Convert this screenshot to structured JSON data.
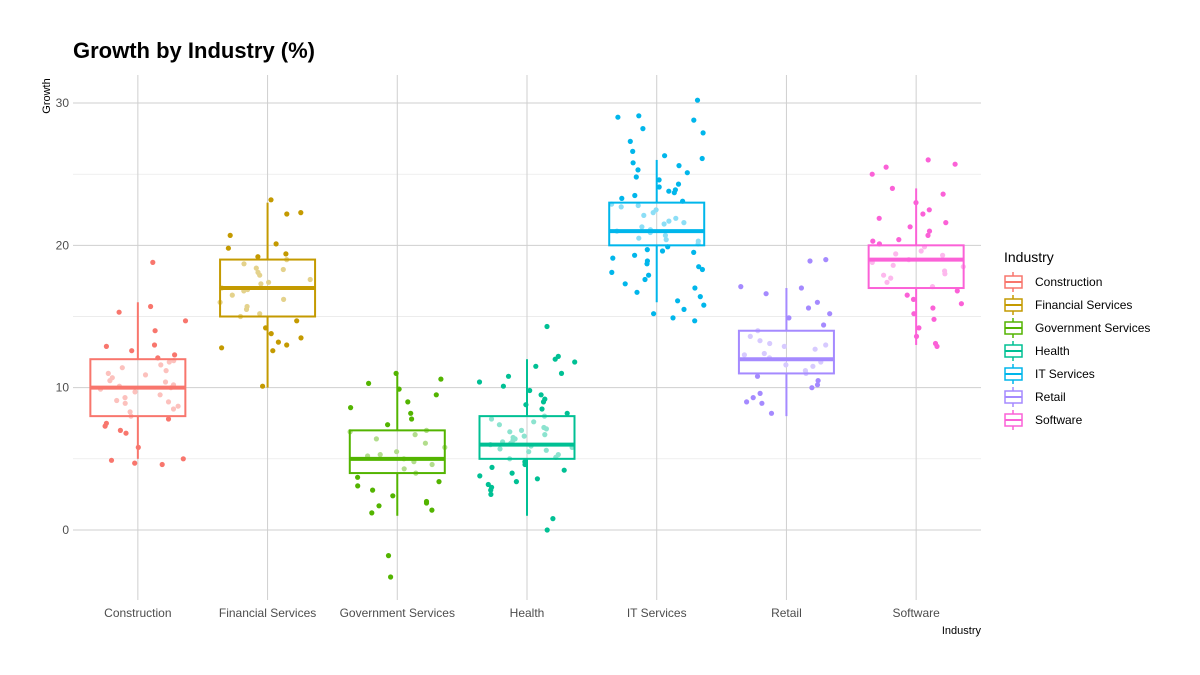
{
  "chart_data": {
    "type": "boxplot",
    "title": "Growth by Industry (%)",
    "xlabel": "Industry",
    "ylabel": "Growth",
    "ylim": [
      -5,
      31
    ],
    "y_ticks": [
      0,
      10,
      20,
      30
    ],
    "grid": true,
    "legend": {
      "title": "Industry",
      "position": "right"
    },
    "categories": [
      "Construction",
      "Financial Services",
      "Government Services",
      "Health",
      "IT Services",
      "Retail",
      "Software"
    ],
    "colors": [
      "#F8766D",
      "#C49A00",
      "#53B400",
      "#00C094",
      "#00B6EB",
      "#A58AFF",
      "#FB61D7"
    ],
    "boxes": [
      {
        "name": "Construction",
        "whisker_low": 5,
        "q1": 8,
        "median": 10,
        "q3": 12,
        "whisker_high": 16
      },
      {
        "name": "Financial Services",
        "whisker_low": 10,
        "q1": 15,
        "median": 17,
        "q3": 19,
        "whisker_high": 23
      },
      {
        "name": "Government Services",
        "whisker_low": 1,
        "q1": 4,
        "median": 5,
        "q3": 7,
        "whisker_high": 11
      },
      {
        "name": "Health",
        "whisker_low": 1,
        "q1": 5,
        "median": 6,
        "q3": 8,
        "whisker_high": 12
      },
      {
        "name": "IT Services",
        "whisker_low": 16,
        "q1": 20,
        "median": 21,
        "q3": 23,
        "whisker_high": 26
      },
      {
        "name": "Retail",
        "whisker_low": 8,
        "q1": 11,
        "median": 12,
        "q3": 14,
        "whisker_high": 17
      },
      {
        "name": "Software",
        "whisker_low": 13,
        "q1": 17,
        "median": 19,
        "q3": 20,
        "whisker_high": 24
      }
    ],
    "points": [
      [
        18.8,
        15.3,
        15.7,
        14.7,
        14.0,
        13.0,
        12.9,
        12.3,
        12.1,
        11.8,
        11.6,
        11.4,
        11.2,
        11.0,
        10.9,
        10.7,
        10.5,
        10.4,
        10.2,
        10.0,
        9.9,
        9.7,
        9.5,
        9.3,
        9.1,
        8.9,
        8.7,
        8.5,
        8.3,
        8.0,
        7.8,
        7.5,
        7.3,
        7.0,
        6.8,
        5.8,
        5.0,
        4.7,
        4.6,
        4.9,
        12.6,
        11.9,
        9.0,
        10.1
      ],
      [
        23.2,
        22.3,
        22.2,
        20.7,
        20.1,
        19.8,
        19.4,
        19.2,
        19.0,
        18.7,
        18.4,
        18.1,
        17.9,
        17.6,
        17.3,
        17.0,
        16.8,
        16.5,
        16.2,
        16.0,
        15.7,
        15.5,
        15.2,
        15.0,
        14.7,
        14.2,
        13.8,
        13.5,
        13.2,
        13.0,
        12.8,
        12.6,
        10.1,
        17.4,
        18.3,
        16.9
      ],
      [
        11.0,
        10.6,
        10.3,
        9.9,
        9.5,
        9.0,
        8.6,
        8.2,
        7.8,
        7.4,
        7.0,
        6.7,
        6.4,
        6.1,
        5.8,
        5.5,
        5.2,
        5.0,
        4.8,
        4.6,
        4.3,
        4.0,
        3.7,
        3.4,
        3.1,
        2.8,
        2.4,
        2.0,
        1.7,
        1.4,
        1.2,
        1.9,
        -1.8,
        -3.3,
        6.9,
        5.3
      ],
      [
        14.3,
        12.2,
        12.0,
        11.8,
        11.5,
        11.0,
        10.8,
        10.4,
        10.1,
        9.8,
        9.5,
        9.2,
        9.0,
        8.8,
        8.5,
        8.2,
        8.0,
        7.8,
        7.6,
        7.4,
        7.2,
        7.0,
        6.9,
        6.7,
        6.5,
        6.4,
        6.2,
        6.1,
        6.0,
        5.9,
        5.8,
        5.6,
        5.5,
        5.3,
        5.1,
        5.0,
        4.8,
        4.6,
        4.4,
        4.2,
        4.0,
        3.8,
        3.6,
        3.4,
        3.2,
        3.0,
        2.8,
        2.5,
        0.8,
        0.0,
        7.1,
        6.3,
        5.7,
        6.6
      ],
      [
        30.2,
        29.1,
        29.0,
        28.8,
        28.2,
        27.9,
        27.3,
        26.6,
        26.3,
        26.1,
        25.8,
        25.6,
        25.3,
        25.1,
        24.8,
        24.6,
        24.3,
        24.1,
        23.9,
        23.7,
        23.5,
        23.3,
        23.1,
        22.9,
        22.7,
        22.5,
        22.3,
        22.1,
        21.9,
        21.7,
        21.5,
        21.3,
        21.1,
        20.9,
        20.7,
        20.5,
        20.3,
        20.1,
        19.9,
        19.7,
        19.5,
        19.3,
        19.1,
        18.9,
        18.7,
        18.5,
        18.3,
        18.1,
        17.9,
        17.6,
        17.3,
        17.0,
        16.7,
        16.4,
        16.1,
        15.8,
        15.5,
        15.2,
        14.9,
        14.7,
        22.8,
        21.6,
        20.4,
        23.8,
        19.6,
        21.0
      ],
      [
        19.0,
        18.9,
        17.1,
        17.0,
        16.6,
        16.0,
        15.6,
        15.2,
        14.9,
        14.4,
        14.0,
        13.6,
        13.3,
        13.0,
        12.7,
        12.4,
        12.1,
        11.8,
        11.5,
        11.2,
        11.0,
        10.8,
        10.5,
        10.2,
        10.0,
        9.6,
        9.3,
        9.0,
        8.9,
        8.2,
        12.9,
        11.6,
        12.3,
        13.1
      ],
      [
        26.0,
        25.7,
        25.5,
        25.0,
        24.0,
        23.6,
        23.0,
        22.5,
        22.2,
        21.9,
        21.6,
        21.3,
        21.0,
        20.7,
        20.4,
        20.1,
        19.9,
        19.6,
        19.3,
        19.0,
        18.8,
        18.5,
        18.2,
        18.0,
        17.7,
        17.4,
        17.1,
        16.8,
        16.5,
        16.2,
        15.9,
        15.6,
        15.2,
        14.8,
        14.2,
        13.6,
        13.1,
        12.9,
        19.4,
        18.6,
        20.3,
        17.9
      ]
    ]
  }
}
